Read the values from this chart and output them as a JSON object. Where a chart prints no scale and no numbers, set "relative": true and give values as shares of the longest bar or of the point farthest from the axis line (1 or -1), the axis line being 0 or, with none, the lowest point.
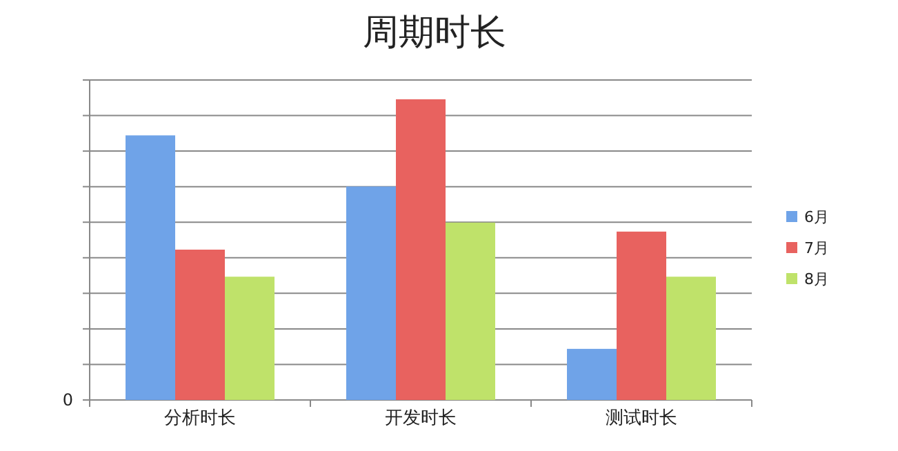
{
  "chart_data": {
    "type": "bar",
    "title": "周期时长",
    "relative": true,
    "grid": "y",
    "legend": "right",
    "annotations": [
      "0"
    ],
    "categories": [
      "分析时长",
      "开发时长",
      "测试时长"
    ],
    "series": [
      {
        "name": "6月",
        "color": "#6fa3e8",
        "values": [
          0.88,
          0.71,
          0.17
        ]
      },
      {
        "name": "7月",
        "color": "#e8625f",
        "values": [
          0.5,
          1,
          0.56
        ]
      },
      {
        "name": "8月",
        "color": "#bfe26a",
        "values": [
          0.41,
          0.59,
          0.41
        ]
      }
    ]
  }
}
